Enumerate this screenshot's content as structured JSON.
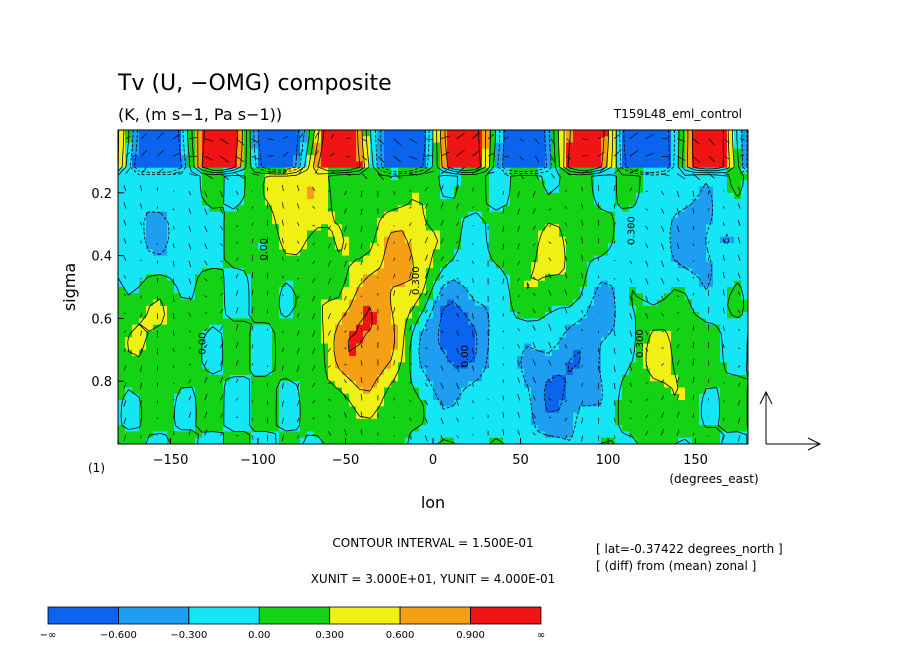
{
  "chart_data": {
    "type": "heatmap",
    "title": "Tv (U, −OMG) composite",
    "units": "(K, (m s−1, Pa s−1))",
    "experiment": "T159L48_eml_control",
    "xlabel": "lon",
    "ylabel": "sigma",
    "x_unit_label": "(degrees_east)",
    "xlim": [
      -180,
      180
    ],
    "ylim": [
      1.0,
      0.0
    ],
    "y_reversed": true,
    "x_ticks": [
      -150,
      -100,
      -50,
      0,
      50,
      100,
      150
    ],
    "y_ticks": [
      0.2,
      0.4,
      0.6,
      0.8
    ],
    "x_tick_labels": [
      "−150",
      "−100",
      "−50",
      "0",
      "50",
      "100",
      "150"
    ],
    "y_tick_labels": [
      "0.2",
      "0.4",
      "0.6",
      "0.8"
    ],
    "contour_lines": [
      "0.300",
      "0.00",
      "0.00",
      "0.300",
      "0.300",
      "0.00"
    ],
    "contour_interval": "CONTOUR INTERVAL = 1.500E-01",
    "vector_units": "XUNIT = 3.000E+01, YUNIT = 4.000E-01",
    "frame_label": "(1)",
    "annotations": [
      "[ lat=-0.37422 degrees_north ]",
      "[ (diff) from (mean) zonal ]"
    ],
    "colorbar": {
      "boundaries": [
        "−∞",
        "−0.600",
        "−0.300",
        "0.00",
        "0.300",
        "0.600",
        "0.900",
        "∞"
      ],
      "colors": [
        "#0a64f0",
        "#1e9ef0",
        "#14e6f5",
        "#14d214",
        "#f0f014",
        "#f5a014",
        "#f01414"
      ]
    },
    "field_features": [
      {
        "kind": "max",
        "lon": -40,
        "sigma": 0.68,
        "value": 0.95
      },
      {
        "kind": "max",
        "lon": -15,
        "sigma": 0.42,
        "value": 0.7
      },
      {
        "kind": "max",
        "lon": -75,
        "sigma": 0.22,
        "value": 0.55
      },
      {
        "kind": "max",
        "lon": 70,
        "sigma": 0.45,
        "value": 0.45
      },
      {
        "kind": "max",
        "lon": -160,
        "sigma": 0.6,
        "value": 0.4
      },
      {
        "kind": "max",
        "lon": 130,
        "sigma": 0.72,
        "value": 0.4
      },
      {
        "kind": "min",
        "lon": 10,
        "sigma": 0.65,
        "value": -0.85
      },
      {
        "kind": "min",
        "lon": 70,
        "sigma": 0.82,
        "value": -0.6
      },
      {
        "kind": "min",
        "lon": 95,
        "sigma": 0.6,
        "value": -0.45
      },
      {
        "kind": "min",
        "lon": -160,
        "sigma": 0.35,
        "value": -0.4
      },
      {
        "kind": "min",
        "lon": 150,
        "sigma": 0.35,
        "value": -0.45
      }
    ]
  }
}
